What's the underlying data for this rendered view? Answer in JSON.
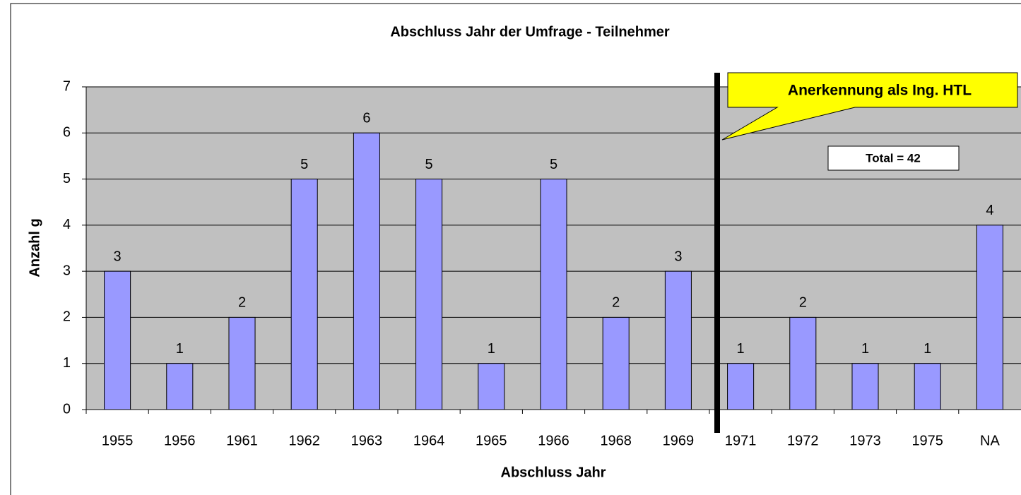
{
  "chart_data": {
    "type": "bar",
    "title": "Abschluss Jahr der Umfrage - Teilnehmer",
    "x_label": "Abschluss Jahr",
    "y_label": "Anzahl g",
    "categories": [
      "1955",
      "1956",
      "1961",
      "1962",
      "1963",
      "1964",
      "1965",
      "1966",
      "1968",
      "1969",
      "1971",
      "1972",
      "1973",
      "1975",
      "NA"
    ],
    "values": [
      3,
      1,
      2,
      5,
      6,
      5,
      1,
      5,
      2,
      3,
      1,
      2,
      1,
      1,
      4
    ],
    "color": "#9999ff",
    "ylim": [
      0,
      7
    ],
    "yticks": [
      0,
      1,
      2,
      3,
      4,
      5,
      6,
      7
    ],
    "grid": true,
    "annotations": [
      "Anerkennung als Ing. HTL",
      "Total = 42"
    ]
  }
}
